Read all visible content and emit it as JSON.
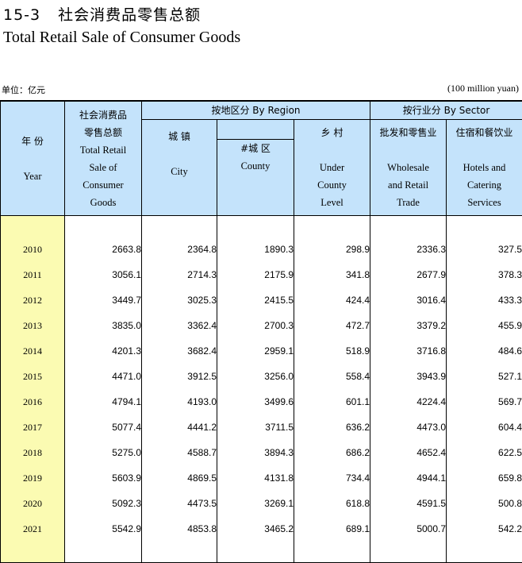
{
  "title": {
    "number": "15-3",
    "cn": "社会消费品零售总额",
    "en": "Total Retail Sale of Consumer Goods"
  },
  "unit": {
    "cn": "单位：亿元",
    "en": "(100 million yuan)"
  },
  "headers": {
    "year": {
      "cn": "年  份",
      "en": "Year"
    },
    "total": {
      "cn1": "社会消费品",
      "cn2": "零售总额",
      "en1": "Total Retail",
      "en2": "Sale of",
      "en3": "Consumer",
      "en4": "Goods"
    },
    "by_region": "按地区分 By Region",
    "city": {
      "cn": "城  镇",
      "en": "City"
    },
    "county": {
      "cn": "#城  区",
      "en": "County"
    },
    "rural": {
      "cn": "乡  村",
      "en1": "Under",
      "en2": "County",
      "en3": "Level"
    },
    "by_sector": "按行业分 By Sector",
    "wholesale": {
      "cn": "批发和零售业",
      "en1": "Wholesale",
      "en2": "and Retail",
      "en3": "Trade"
    },
    "hotels": {
      "cn": "住宿和餐饮业",
      "en1": "Hotels and",
      "en2": "Catering",
      "en3": "Services"
    }
  },
  "rows": [
    {
      "year": "2010",
      "total": "2663.8",
      "city": "2364.8",
      "county": "1890.3",
      "rural": "298.9",
      "wholesale": "2336.3",
      "hotels": "327.5"
    },
    {
      "year": "2011",
      "total": "3056.1",
      "city": "2714.3",
      "county": "2175.9",
      "rural": "341.8",
      "wholesale": "2677.9",
      "hotels": "378.3"
    },
    {
      "year": "2012",
      "total": "3449.7",
      "city": "3025.3",
      "county": "2415.5",
      "rural": "424.4",
      "wholesale": "3016.4",
      "hotels": "433.3"
    },
    {
      "year": "2013",
      "total": "3835.0",
      "city": "3362.4",
      "county": "2700.3",
      "rural": "472.7",
      "wholesale": "3379.2",
      "hotels": "455.9"
    },
    {
      "year": "2014",
      "total": "4201.3",
      "city": "3682.4",
      "county": "2959.1",
      "rural": "518.9",
      "wholesale": "3716.8",
      "hotels": "484.6"
    },
    {
      "year": "2015",
      "total": "4471.0",
      "city": "3912.5",
      "county": "3256.0",
      "rural": "558.4",
      "wholesale": "3943.9",
      "hotels": "527.1"
    },
    {
      "year": "2016",
      "total": "4794.1",
      "city": "4193.0",
      "county": "3499.6",
      "rural": "601.1",
      "wholesale": "4224.4",
      "hotels": "569.7"
    },
    {
      "year": "2017",
      "total": "5077.4",
      "city": "4441.2",
      "county": "3711.5",
      "rural": "636.2",
      "wholesale": "4473.0",
      "hotels": "604.4"
    },
    {
      "year": "2018",
      "total": "5275.0",
      "city": "4588.7",
      "county": "3894.3",
      "rural": "686.2",
      "wholesale": "4652.4",
      "hotels": "622.5"
    },
    {
      "year": "2019",
      "total": "5603.9",
      "city": "4869.5",
      "county": "4131.8",
      "rural": "734.4",
      "wholesale": "4944.1",
      "hotels": "659.8"
    },
    {
      "year": "2020",
      "total": "5092.3",
      "city": "4473.5",
      "county": "3269.1",
      "rural": "618.8",
      "wholesale": "4591.5",
      "hotels": "500.8"
    },
    {
      "year": "2021",
      "total": "5542.9",
      "city": "4853.8",
      "county": "3465.2",
      "rural": "689.1",
      "wholesale": "5000.7",
      "hotels": "542.2"
    }
  ]
}
